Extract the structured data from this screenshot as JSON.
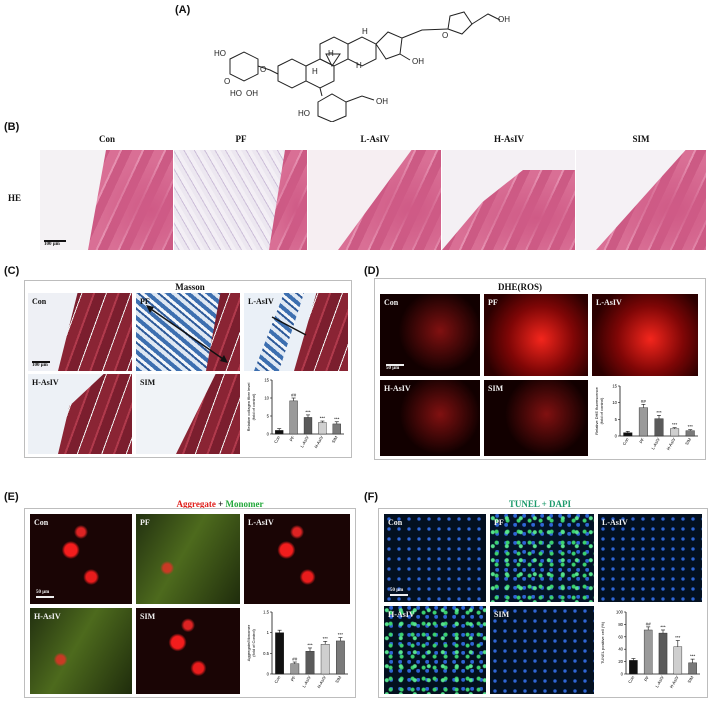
{
  "panels": {
    "A": "(A)",
    "B": "(B)",
    "C": "(C)",
    "D": "(D)",
    "E": "(E)",
    "F": "(F)"
  },
  "structure_labels": [
    "HO",
    "O",
    "O",
    "HO",
    "OH",
    "OH",
    "H",
    "H",
    "H",
    "H",
    "HO",
    "HO",
    "OH",
    "OH",
    "O"
  ],
  "he": {
    "row_label": "HE",
    "groups": [
      "Con",
      "PF",
      "L-AsIV",
      "H-AsIV",
      "SIM"
    ],
    "scale": "100 μm"
  },
  "masson": {
    "title": "Masson",
    "labels": [
      "Con",
      "PF",
      "L-AsIV",
      "H-AsIV",
      "SIM"
    ],
    "scale": "100 μm"
  },
  "dhe": {
    "title": "DHE(ROS)",
    "labels": [
      "Con",
      "PF",
      "L-AsIV",
      "H-AsIV",
      "SIM"
    ],
    "scale": "50 μm"
  },
  "jc1": {
    "title_red": "Aggregate",
    "title_plus": " + ",
    "title_green": "Monomer",
    "labels": [
      "Con",
      "PF",
      "L-AsIV",
      "H-AsIV",
      "SIM"
    ],
    "scale": "50 μm"
  },
  "tunel": {
    "title": "TUNEL + DAPI",
    "labels": [
      "Con",
      "PF",
      "L-AsIV",
      "H-AsIV",
      "SIM"
    ],
    "scale": "50 μm"
  },
  "colors": {
    "aggregate": "#e0201c",
    "monomer": "#22a83a",
    "tunel": "#1c9a6b"
  },
  "chart_data": [
    {
      "type": "bar",
      "panel": "C",
      "categories": [
        "Con",
        "PF",
        "L-AsIV",
        "H-AsIV",
        "SIM"
      ],
      "values": [
        1.0,
        9.2,
        4.6,
        3.2,
        2.8
      ],
      "errors": [
        0.5,
        0.8,
        0.7,
        0.4,
        0.6
      ],
      "ylabel": "Relative collagen fiber level\n(fold of control)",
      "ylim": [
        0,
        15
      ],
      "yticks": [
        0,
        5,
        10,
        15
      ],
      "annotations": [
        "",
        "##",
        "***",
        "***",
        "***"
      ]
    },
    {
      "type": "bar",
      "panel": "D",
      "categories": [
        "Con",
        "PF",
        "L-AsIV",
        "H-AsIV",
        "SIM"
      ],
      "values": [
        1.0,
        8.5,
        5.2,
        2.2,
        1.6
      ],
      "errors": [
        0.4,
        1.0,
        1.0,
        0.3,
        0.3
      ],
      "ylabel": "Relative DHE fluorescence\n(fold of control)",
      "ylim": [
        0,
        15
      ],
      "yticks": [
        0,
        5,
        10,
        15
      ],
      "annotations": [
        "",
        "##",
        "***",
        "***",
        "***"
      ]
    },
    {
      "type": "bar",
      "panel": "E",
      "categories": [
        "Con",
        "PF",
        "L-AsIV",
        "H-AsIV",
        "SIM"
      ],
      "values": [
        1.0,
        0.25,
        0.55,
        0.72,
        0.8
      ],
      "errors": [
        0.06,
        0.04,
        0.08,
        0.07,
        0.08
      ],
      "ylabel": "Aggregate/Monomer\n(fold of Control)",
      "ylim": [
        0,
        1.5
      ],
      "yticks": [
        0.0,
        0.5,
        1.0,
        1.5
      ],
      "annotations": [
        "",
        "##",
        "***",
        "***",
        "***"
      ]
    },
    {
      "type": "bar",
      "panel": "F",
      "categories": [
        "Con",
        "PF",
        "L-AsIV",
        "H-AsIV",
        "SIM"
      ],
      "values": [
        22,
        71,
        66,
        44,
        18
      ],
      "errors": [
        3,
        5,
        5,
        10,
        6
      ],
      "ylabel": "TUNEL positive cell (%)",
      "ylim": [
        0,
        100
      ],
      "yticks": [
        0,
        20,
        40,
        60,
        80,
        100
      ],
      "annotations": [
        "",
        "##",
        "***",
        "***",
        "***"
      ]
    }
  ]
}
